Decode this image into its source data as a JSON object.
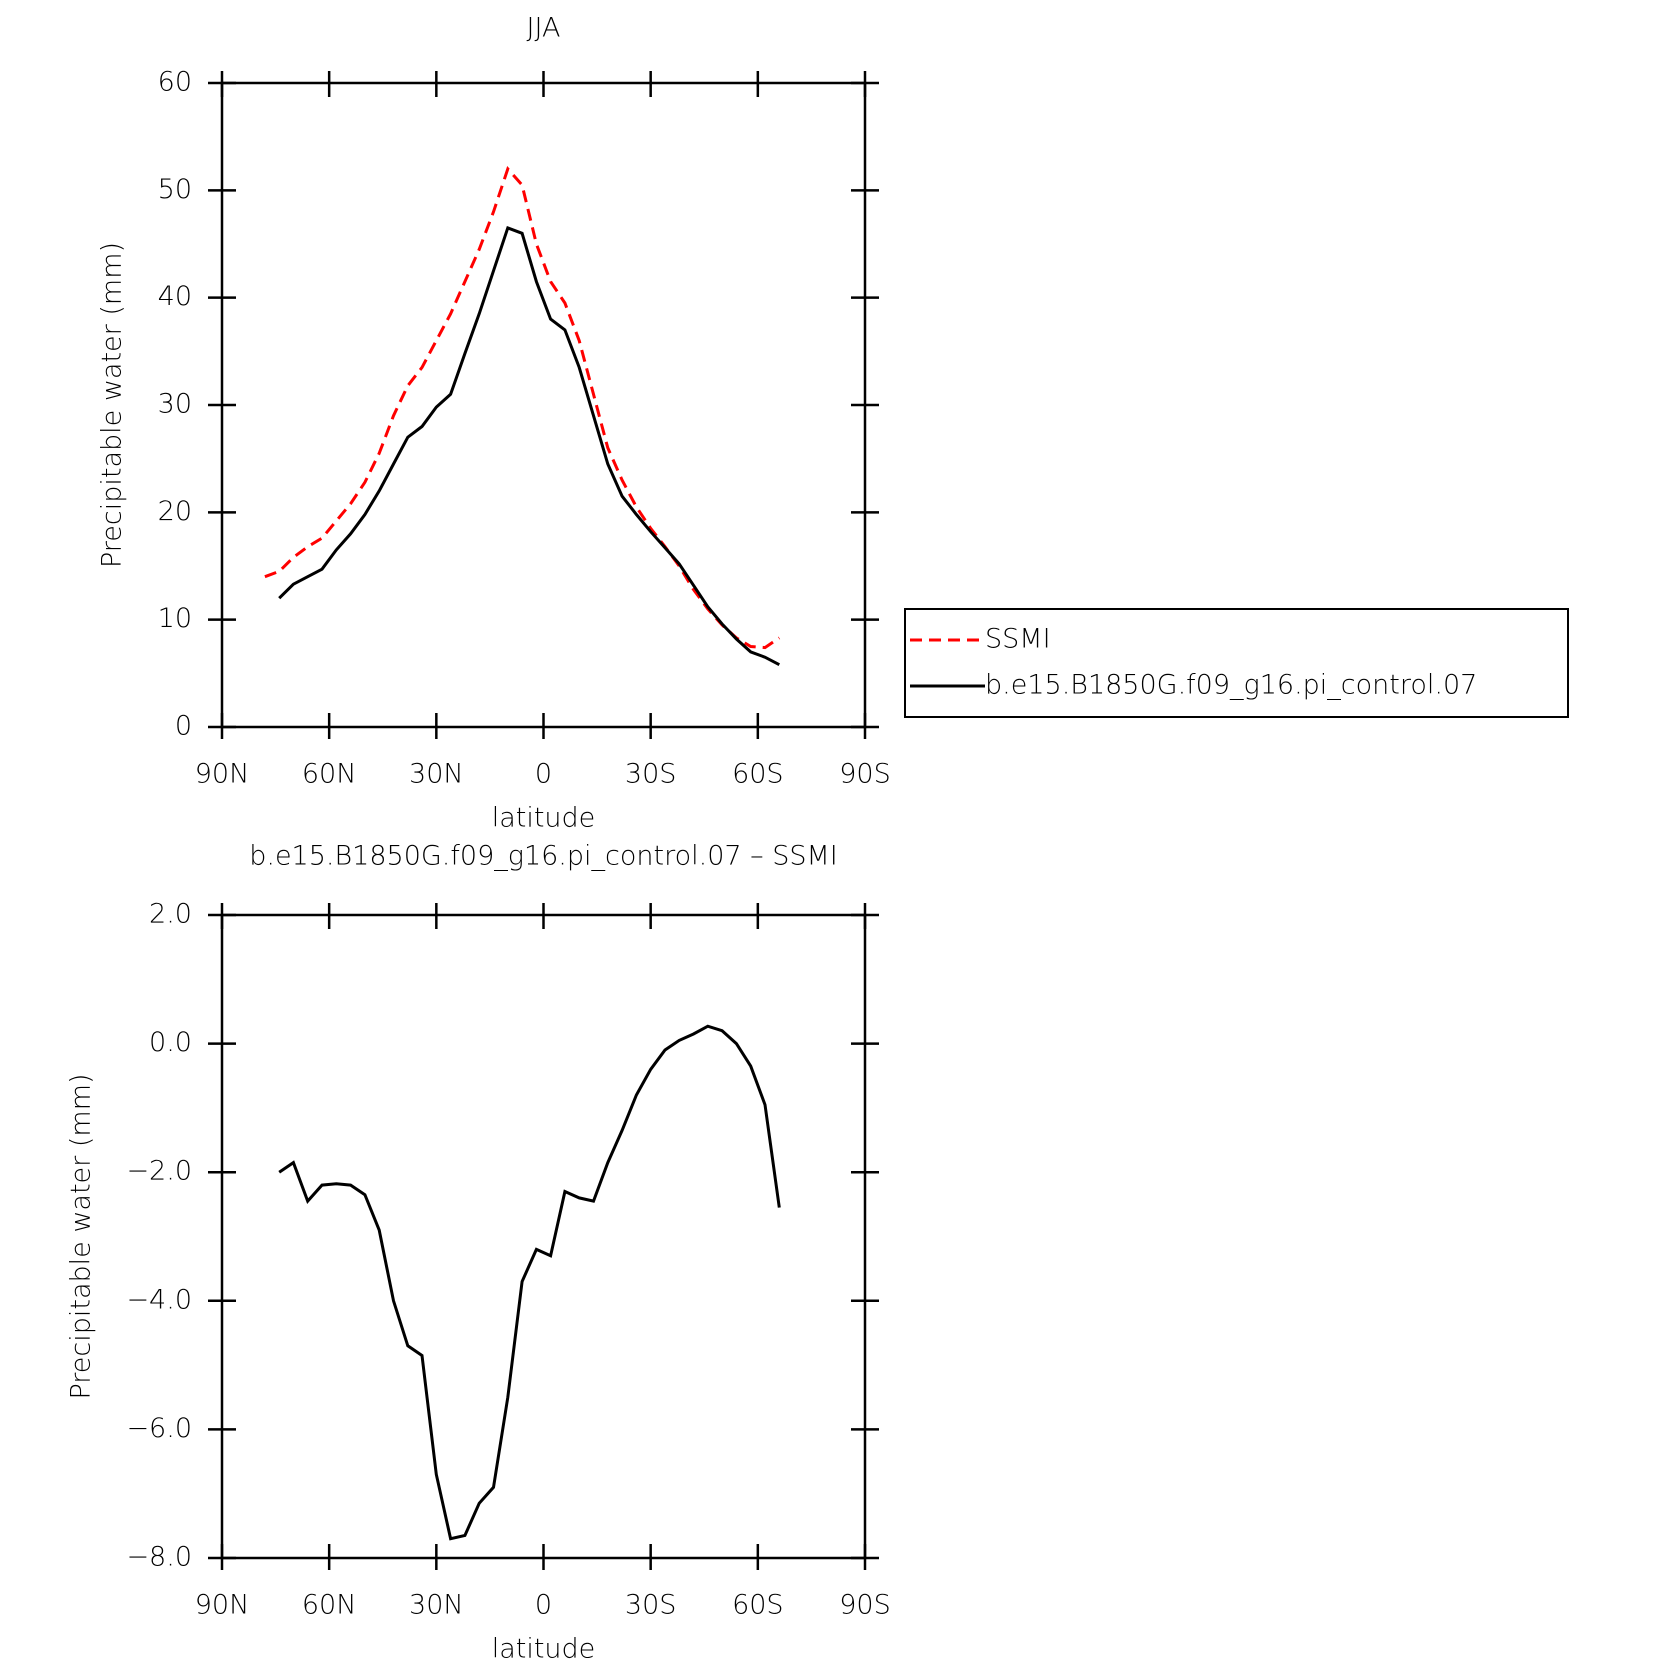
{
  "chart_data": [
    {
      "type": "line",
      "title": "JJA",
      "xlabel": "latitude",
      "ylabel": "Precipitable water (mm)",
      "x": [
        78,
        74,
        70,
        66,
        62,
        58,
        54,
        50,
        46,
        42,
        38,
        34,
        30,
        26,
        22,
        18,
        14,
        10,
        6,
        2,
        -2,
        -6,
        -10,
        -14,
        -18,
        -22,
        -26,
        -30,
        -34,
        -38,
        -42,
        -46,
        -50,
        -54,
        -58,
        -62,
        -66
      ],
      "series": [
        {
          "name": "SSMI",
          "color": "#ff0000",
          "dash": true,
          "values": [
            14.0,
            14.5,
            15.8,
            16.8,
            17.6,
            19.2,
            20.8,
            22.8,
            25.5,
            29.0,
            31.8,
            33.5,
            36.0,
            38.5,
            41.5,
            44.5,
            48.0,
            52.0,
            50.5,
            45.0,
            41.5,
            39.5,
            36.0,
            31.0,
            26.0,
            23.0,
            20.5,
            18.5,
            16.8,
            15.0,
            12.8,
            11.0,
            9.5,
            8.3,
            7.5,
            7.4,
            8.3
          ]
        },
        {
          "name": "b.e15.B1850G.f09_g16.pi_control.07",
          "color": "#000000",
          "dash": false,
          "values": [
            null,
            12.0,
            13.3,
            14.0,
            14.7,
            16.5,
            18.0,
            19.8,
            22.0,
            24.5,
            27.0,
            28.0,
            29.8,
            31.0,
            34.8,
            38.5,
            42.5,
            46.5,
            46.0,
            41.5,
            38.0,
            37.0,
            33.5,
            29.0,
            24.5,
            21.5,
            19.8,
            18.2,
            16.7,
            15.2,
            13.2,
            11.2,
            9.6,
            8.2,
            7.0,
            6.5,
            5.8
          ]
        }
      ],
      "xlim": [
        90,
        -90
      ],
      "xticks": [
        {
          "value": 90,
          "label": "90N"
        },
        {
          "value": 60,
          "label": "60N"
        },
        {
          "value": 30,
          "label": "30N"
        },
        0,
        {
          "value": -30,
          "label": "30S"
        },
        {
          "value": -60,
          "label": "60S"
        },
        {
          "value": -90,
          "label": "90S"
        }
      ],
      "ylim": [
        0,
        60
      ],
      "yticks": [
        0,
        10,
        20,
        30,
        40,
        50,
        60
      ],
      "legend": "right"
    },
    {
      "type": "line",
      "title": "b.e15.B1850G.f09_g16.pi_control.07 – SSMI",
      "xlabel": "latitude",
      "ylabel": "Precipitable water (mm)",
      "x": [
        74,
        70,
        66,
        62,
        58,
        54,
        50,
        46,
        42,
        38,
        34,
        30,
        26,
        22,
        18,
        14,
        10,
        6,
        2,
        -2,
        -6,
        -10,
        -14,
        -18,
        -22,
        -26,
        -30,
        -34,
        -38,
        -42,
        -46,
        -50,
        -54,
        -58,
        -62,
        -66
      ],
      "series": [
        {
          "color": "#000000",
          "dash": false,
          "values": [
            -2.0,
            -1.85,
            -2.45,
            -2.2,
            -2.18,
            -2.2,
            -2.35,
            -2.9,
            -4.0,
            -4.7,
            -4.85,
            -6.7,
            -7.7,
            -7.65,
            -7.15,
            -6.9,
            -5.5,
            -3.7,
            -3.2,
            -3.3,
            -2.3,
            -2.4,
            -2.45,
            -1.85,
            -1.35,
            -0.8,
            -0.4,
            -0.1,
            0.05,
            0.15,
            0.27,
            0.2,
            0.0,
            -0.35,
            -0.95,
            -2.55
          ]
        }
      ],
      "xlim": [
        90,
        -90
      ],
      "xticks": [
        {
          "value": 90,
          "label": "90N"
        },
        {
          "value": 60,
          "label": "60N"
        },
        {
          "value": 30,
          "label": "30N"
        },
        0,
        {
          "value": -30,
          "label": "30S"
        },
        {
          "value": -60,
          "label": "60S"
        },
        {
          "value": -90,
          "label": "90S"
        }
      ],
      "ylim": [
        -8,
        2
      ],
      "yticks": [
        {
          "value": -8,
          "label": "−8.0"
        },
        {
          "value": -6,
          "label": "−6.0"
        },
        {
          "value": -4,
          "label": "−4.0"
        },
        {
          "value": -2,
          "label": "−2.0"
        },
        {
          "value": 0,
          "label": "0.0"
        },
        {
          "value": 2,
          "label": "2.0"
        }
      ]
    }
  ]
}
